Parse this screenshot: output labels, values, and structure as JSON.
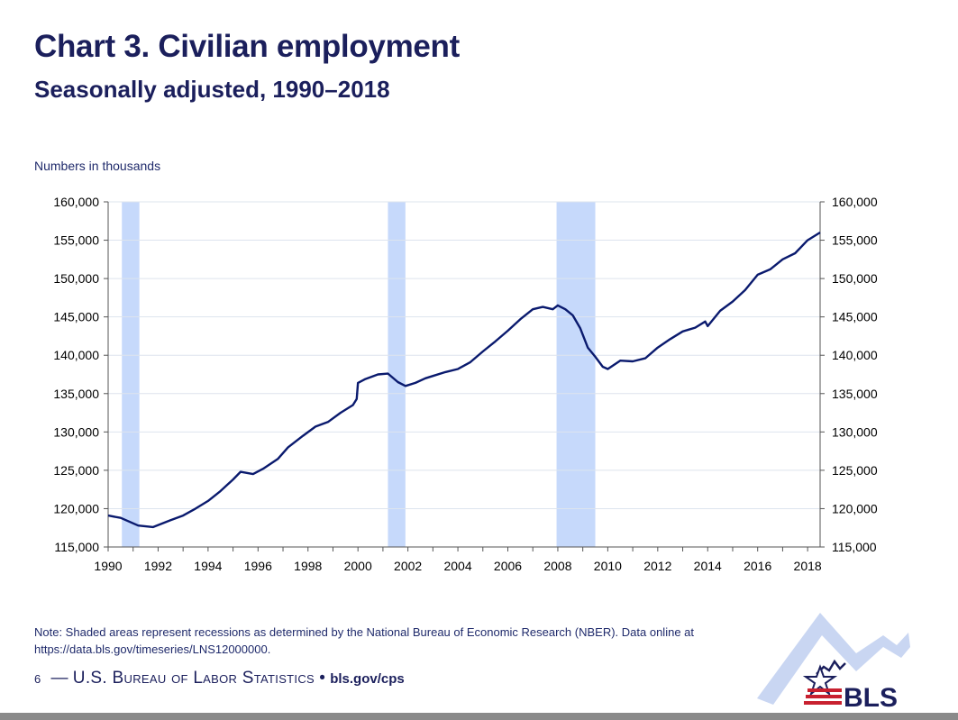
{
  "header": {
    "title": "Chart 3. Civilian employment",
    "subtitle": "Seasonally adjusted, 1990–2018"
  },
  "chart_data": {
    "type": "line",
    "title": "Chart 3. Civilian employment",
    "subtitle": "Seasonally adjusted, 1990–2018",
    "unit_label": "Numbers in thousands",
    "ylabel": "",
    "xlabel": "",
    "xlim": [
      1990,
      2018.5
    ],
    "ylim": [
      115000,
      160000
    ],
    "y_ticks": [
      115000,
      120000,
      125000,
      130000,
      135000,
      140000,
      145000,
      150000,
      155000,
      160000
    ],
    "y_tick_labels": [
      "115,000",
      "120,000",
      "125,000",
      "130,000",
      "135,000",
      "140,000",
      "145,000",
      "150,000",
      "155,000",
      "160,000"
    ],
    "x_tick_labels": [
      "1990",
      "1992",
      "1994",
      "1996",
      "1998",
      "2000",
      "2002",
      "2004",
      "2006",
      "2008",
      "2010",
      "2012",
      "2014",
      "2016",
      "2018"
    ],
    "grid": true,
    "dual_y_axis": true,
    "recessions": [
      [
        1990.55,
        1991.25
      ],
      [
        2001.2,
        2001.9
      ],
      [
        2007.95,
        2009.5
      ]
    ],
    "series": [
      {
        "name": "Civilian employment",
        "color": "#0a1a6e",
        "x": [
          1990,
          1990.5,
          1991.2,
          1991.8,
          1992.5,
          1993,
          1993.5,
          1994,
          1994.5,
          1995,
          1995.3,
          1995.8,
          1996.2,
          1996.8,
          1997.2,
          1997.8,
          1998.3,
          1998.8,
          1999.3,
          1999.8,
          1999.95,
          2000,
          2000.3,
          2000.8,
          2001.2,
          2001.6,
          2001.9,
          2002.3,
          2002.7,
          2003,
          2003.5,
          2004,
          2004.5,
          2005,
          2005.5,
          2006,
          2006.5,
          2007,
          2007.4,
          2007.8,
          2008,
          2008.3,
          2008.6,
          2008.9,
          2009.2,
          2009.5,
          2009.8,
          2010,
          2010.5,
          2011,
          2011.5,
          2012,
          2012.5,
          2013,
          2013.5,
          2013.9,
          2014,
          2014.5,
          2015,
          2015.5,
          2016,
          2016.5,
          2017,
          2017.5,
          2018,
          2018.5
        ],
        "values": [
          119100,
          118800,
          117800,
          117600,
          118500,
          119100,
          120000,
          121000,
          122300,
          123800,
          124800,
          124500,
          125200,
          126500,
          128000,
          129500,
          130700,
          131300,
          132500,
          133500,
          134300,
          136400,
          136900,
          137500,
          137600,
          136500,
          136000,
          136400,
          137000,
          137300,
          137800,
          138200,
          139100,
          140500,
          141800,
          143200,
          144700,
          146000,
          146300,
          146000,
          146500,
          146000,
          145200,
          143500,
          141000,
          139800,
          138500,
          138200,
          139300,
          139200,
          139600,
          141000,
          142100,
          143100,
          143600,
          144400,
          143800,
          145800,
          147000,
          148500,
          150500,
          151200,
          152500,
          153300,
          155000,
          156000
        ]
      }
    ]
  },
  "note": {
    "text": "Note: Shaded areas represent recessions as determined by the National Bureau of Economic Research (NBER).  Data online at https://data.bls.gov/timeseries/LNS12000000."
  },
  "footer": {
    "page_number": "6",
    "separator": "—",
    "agency": "U.S. Bureau of Labor Statistics",
    "bullet": "•",
    "site": "bls.gov/cps"
  },
  "logo": {
    "text": "BLS",
    "colors": {
      "arrow": "#c9d6f2",
      "star": "#c8202f",
      "text": "#1b1f5c"
    }
  }
}
